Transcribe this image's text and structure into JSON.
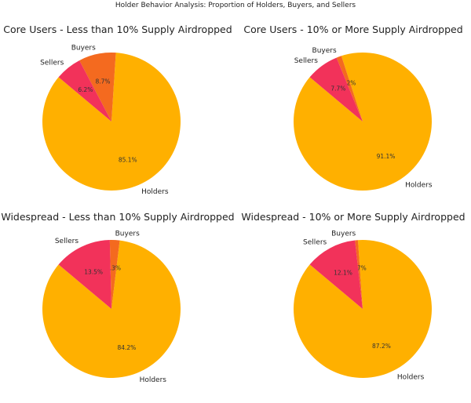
{
  "chart_data": {
    "type": "pie",
    "title": "Holder Behavior Analysis: Proportion of Holders, Buyers, and Sellers",
    "categories": [
      "Holders",
      "Buyers",
      "Sellers"
    ],
    "colors": {
      "Holders": "#FFB000",
      "Buyers": "#F46A1F",
      "Sellers": "#F2325A"
    },
    "start_angle_deg": 140,
    "direction": "counterclockwise",
    "charts": [
      {
        "title": "Core Users - Less than 10% Supply Airdropped",
        "values": [
          85.1,
          8.7,
          6.2
        ],
        "labels": [
          "85.1%",
          "8.7%",
          "6.2%"
        ]
      },
      {
        "title": "Core Users - 10% or More Supply Airdropped",
        "values": [
          91.1,
          1.2,
          7.7
        ],
        "labels": [
          "91.1%",
          "1.2%",
          "7.7%"
        ]
      },
      {
        "title": "Widespread - Less than 10% Supply Airdropped",
        "values": [
          84.2,
          2.3,
          13.5
        ],
        "labels": [
          "84.2%",
          "2.3%",
          "13.5%"
        ]
      },
      {
        "title": "Widespread - 10% or More Supply Airdropped",
        "values": [
          87.2,
          0.7,
          12.1
        ],
        "labels": [
          "87.2%",
          "0.7%",
          "12.1%"
        ]
      }
    ]
  }
}
